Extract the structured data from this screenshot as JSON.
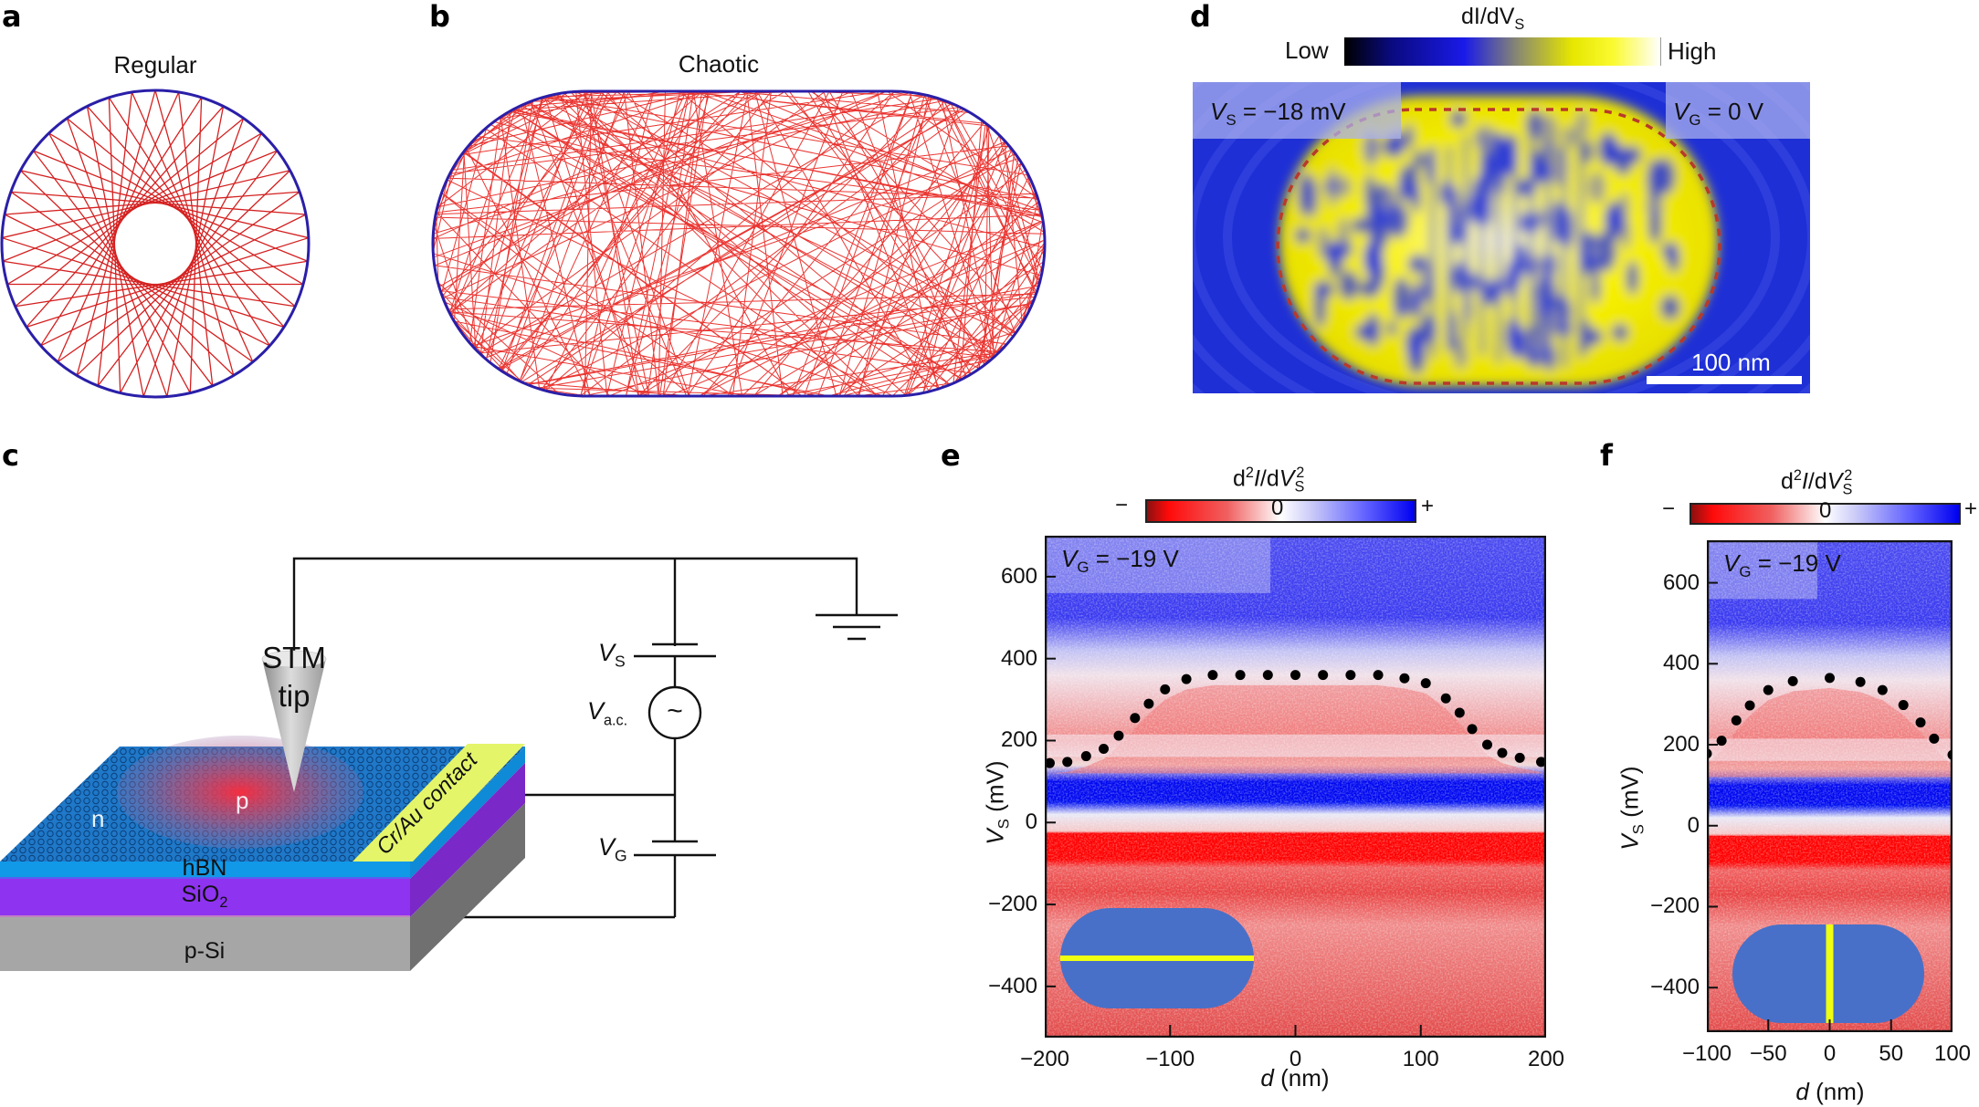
{
  "panels": {
    "a": {
      "label": "a",
      "title": "Regular",
      "billiard": "circle",
      "boundary_color": "#2a1fa8",
      "trajectory_color": "#d42020",
      "chord_count": 41,
      "chord_step": 17
    },
    "b": {
      "label": "b",
      "title": "Chaotic",
      "billiard": "stadium",
      "boundary_color": "#2a1fa8",
      "trajectory_color": "#e8201c",
      "bounces": 520
    },
    "c": {
      "label": "c",
      "tip_label_line1": "STM",
      "tip_label_line2": "tip",
      "region_n": "n",
      "region_p": "p",
      "contact_label": "Cr/Au contact",
      "layer_hbn": "hBN",
      "layer_sio2": "SiO",
      "layer_sio2_sub": "2",
      "layer_psi": "p-Si",
      "vs_label": "V",
      "vs_sub": "S",
      "vac_label": "V",
      "vac_sub": "a.c.",
      "vg_label": "V",
      "vg_sub": "G",
      "ac_symbol": "~",
      "colors": {
        "graphene": "#1f78c8",
        "hbn": "#1199e8",
        "sio2": "#8e33f0",
        "psi": "#a6a6a6",
        "contact": "#e4f56a",
        "p_glow": "#e8324a"
      }
    },
    "d": {
      "label": "d",
      "colorbar_title": "dI/dV",
      "colorbar_title_sub": "S",
      "colorbar_low": "Low",
      "colorbar_high": "High",
      "vs_text_var": "V",
      "vs_text_sub": "S",
      "vs_text_value": " = −18 mV",
      "vg_text_var": "V",
      "vg_text_sub": "G",
      "vg_text_value": " = 0 V",
      "scalebar_label": "100 nm",
      "colors": {
        "background": "#1f2fd8",
        "pattern": "#f4f000",
        "outline": "#b83a2a"
      }
    },
    "e": {
      "label": "e",
      "colorbar_title": "d²I/dV²",
      "colorbar_minus": "−",
      "colorbar_zero": "0",
      "colorbar_plus": "+",
      "annotation_var": "V",
      "annotation_sub": "G",
      "annotation_value": " = −19 V",
      "ylabel_var": "V",
      "ylabel_sub": "S",
      "ylabel_unit": " (mV)",
      "xlabel_var": "d",
      "xlabel_unit": " (nm)",
      "inset_cut": "horizontal"
    },
    "f": {
      "label": "f",
      "colorbar_title": "d²I/dV²",
      "colorbar_minus": "−",
      "colorbar_zero": "0",
      "colorbar_plus": "+",
      "annotation_var": "V",
      "annotation_sub": "G",
      "annotation_value": " = −19 V",
      "ylabel_var": "V",
      "ylabel_sub": "S",
      "ylabel_unit": " (mV)",
      "xlabel_var": "d",
      "xlabel_unit": " (nm)",
      "inset_cut": "vertical"
    }
  },
  "chart_data": [
    {
      "panel": "e",
      "type": "heatmap",
      "title": "d²I/dV_S²",
      "annotation": "V_G = −19 V",
      "xlabel": "d (nm)",
      "ylabel": "V_S (mV)",
      "xlim": [
        -200,
        200
      ],
      "ylim": [
        -525,
        700
      ],
      "xticks": [
        -200,
        -100,
        0,
        100,
        200
      ],
      "yticks": [
        -400,
        -200,
        0,
        200,
        400,
        600
      ],
      "colorbar": {
        "min_label": "−",
        "mid_label": "0",
        "max_label": "+",
        "colors": [
          "#8b0000",
          "#ff0000",
          "#ffffff",
          "#0000ff"
        ]
      },
      "bands": [
        {
          "vs_from": 50,
          "vs_to": 100,
          "sign": "+",
          "color": "#0010f0"
        },
        {
          "vs_from": -90,
          "vs_to": -20,
          "sign": "-",
          "color": "#ff0000"
        },
        {
          "vs_from": 105,
          "vs_to": 135,
          "sign": "-",
          "color": "#f02020"
        }
      ],
      "series": [
        {
          "name": "dot-marked resonance edge",
          "x": [
            -196,
            -182,
            -167,
            -153,
            -141,
            -128,
            -117,
            -104,
            -87,
            -66,
            -44,
            -22,
            0,
            22,
            44,
            66,
            87,
            104,
            120,
            131,
            141,
            153,
            165,
            179,
            196
          ],
          "y": [
            145,
            148,
            162,
            180,
            212,
            255,
            290,
            325,
            350,
            360,
            360,
            360,
            360,
            360,
            360,
            360,
            352,
            340,
            303,
            268,
            228,
            190,
            170,
            158,
            148
          ]
        }
      ]
    },
    {
      "panel": "f",
      "type": "heatmap",
      "title": "d²I/dV_S²",
      "annotation": "V_G = −19 V",
      "xlabel": "d (nm)",
      "ylabel": "V_S (mV)",
      "xlim": [
        -100,
        100
      ],
      "ylim": [
        -510,
        705
      ],
      "xticks": [
        -100,
        -50,
        0,
        50,
        100
      ],
      "yticks": [
        -400,
        -200,
        0,
        200,
        400,
        600
      ],
      "colorbar": {
        "min_label": "−",
        "mid_label": "0",
        "max_label": "+",
        "colors": [
          "#8b0000",
          "#ff0000",
          "#ffffff",
          "#0000ff"
        ]
      },
      "bands": [
        {
          "vs_from": 50,
          "vs_to": 100,
          "sign": "+",
          "color": "#0010f0"
        },
        {
          "vs_from": -80,
          "vs_to": -20,
          "sign": "-",
          "color": "#ff0000"
        }
      ],
      "series": [
        {
          "name": "dot-marked resonance edge",
          "x": [
            -100,
            -88,
            -76,
            -65,
            -50,
            -30,
            0,
            25,
            43,
            60,
            74,
            85,
            100
          ],
          "y": [
            178,
            210,
            260,
            297,
            335,
            357,
            365,
            355,
            335,
            298,
            255,
            215,
            175
          ]
        }
      ]
    },
    {
      "panel": "d",
      "type": "heatmap",
      "title": "dI/dV_S",
      "colorbar": {
        "min_label": "Low",
        "max_label": "High",
        "colors": [
          "#000000",
          "#1a1ae0",
          "#f0f000",
          "#ffffff"
        ]
      },
      "annotations": [
        "V_S = −18 mV",
        "V_G = 0 V"
      ],
      "scalebar": "100 nm"
    }
  ]
}
